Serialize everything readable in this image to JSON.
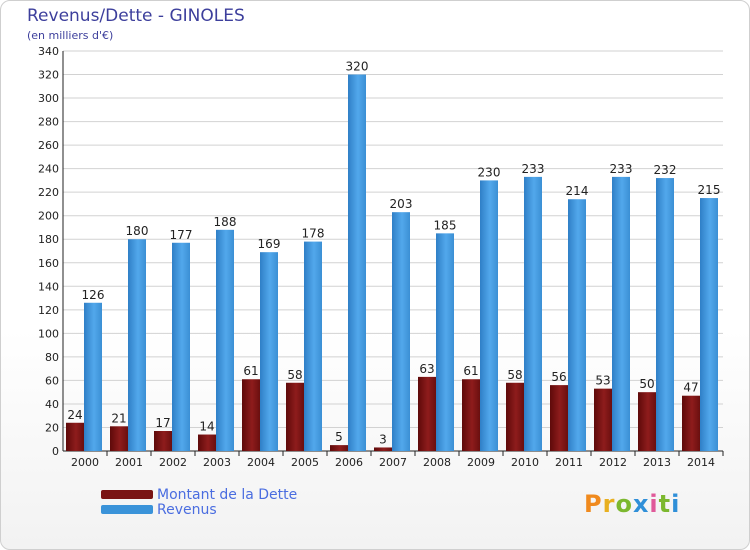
{
  "title": "Revenus/Dette - GINOLES",
  "subtitle": "(en milliers d'€)",
  "logo": "Proxiti",
  "chart_data": {
    "type": "bar",
    "categories": [
      "2000",
      "2001",
      "2002",
      "2003",
      "2004",
      "2005",
      "2006",
      "2007",
      "2008",
      "2009",
      "2010",
      "2011",
      "2012",
      "2013",
      "2014"
    ],
    "series": [
      {
        "name": "Montant de la Dette",
        "color": "#7a1414",
        "values": [
          24,
          21,
          17,
          14,
          61,
          58,
          5,
          3,
          63,
          61,
          58,
          56,
          53,
          50,
          47
        ]
      },
      {
        "name": "Revenus",
        "color": "#3a93d9",
        "values": [
          126,
          180,
          177,
          188,
          169,
          178,
          320,
          203,
          185,
          230,
          233,
          214,
          233,
          232,
          215
        ]
      }
    ],
    "ylim": [
      0,
      340
    ],
    "yticks": [
      0,
      20,
      40,
      60,
      80,
      100,
      120,
      140,
      160,
      180,
      200,
      220,
      240,
      260,
      280,
      300,
      320,
      340
    ],
    "grid": true,
    "legend_position": "bottom-left"
  }
}
